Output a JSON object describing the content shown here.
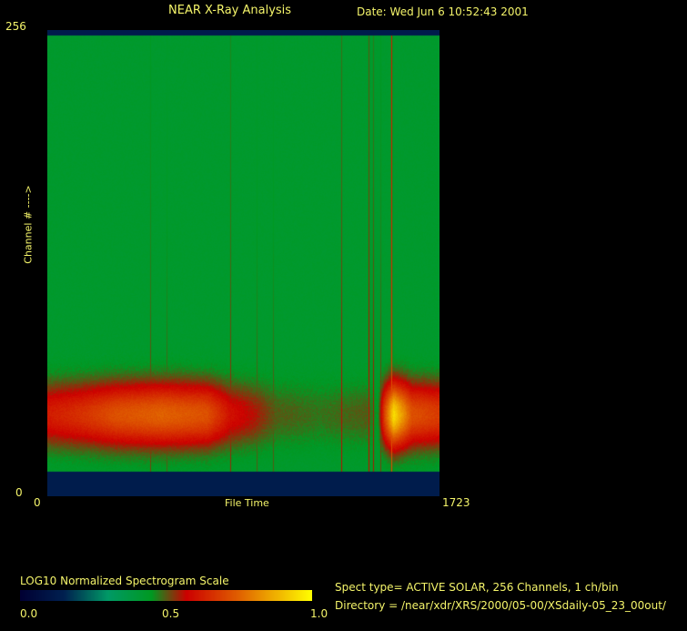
{
  "header": {
    "title": "NEAR X-Ray Analysis",
    "date": "Date: Wed Jun  6 10:52:43 2001"
  },
  "info": {
    "spect_type": "Spect type= ACTIVE SOLAR,  256 Channels,        1 ch/bin",
    "directory": "Directory = /near/xdr/XRS/2000/05-00/XSdaily-05_23_00out/"
  },
  "chart_data": {
    "type": "heatmap",
    "title": "NEAR X-Ray Analysis",
    "xlabel": "File Time",
    "ylabel": "Channel # ---->",
    "xlim": [
      0,
      1723
    ],
    "ylim": [
      0,
      256
    ],
    "x_tick_labels": [
      "0",
      "1723"
    ],
    "y_tick_labels": [
      "0",
      "256"
    ],
    "grid": false,
    "valid_channel_range": [
      14,
      253
    ],
    "background_level": 0.42,
    "band": {
      "center_channel": 45,
      "half_width_channels": 22,
      "profile_time": [
        0,
        150,
        300,
        500,
        700,
        800,
        900,
        1000,
        1200,
        1400,
        1450,
        1480,
        1520,
        1600,
        1723
      ],
      "profile_level": [
        0.62,
        0.66,
        0.72,
        0.75,
        0.72,
        0.6,
        0.56,
        0.5,
        0.48,
        0.5,
        0.44,
        0.7,
        0.95,
        0.72,
        0.68
      ]
    },
    "spikes": [
      {
        "time": 452,
        "level": 0.52
      },
      {
        "time": 524,
        "level": 0.5
      },
      {
        "time": 803,
        "level": 0.54
      },
      {
        "time": 919,
        "level": 0.5
      },
      {
        "time": 991,
        "level": 0.5
      },
      {
        "time": 1291,
        "level": 0.56
      },
      {
        "time": 1411,
        "level": 0.58
      },
      {
        "time": 1431,
        "level": 0.55
      },
      {
        "time": 1463,
        "level": 0.52
      },
      {
        "time": 1511,
        "level": 0.72
      }
    ],
    "colorbar": {
      "label": "LOG10 Normalized Spectrogram Scale",
      "ticks": [
        "0.0",
        "0.5",
        "1.0"
      ],
      "stops": [
        {
          "v": 0.0,
          "color": "#000033"
        },
        {
          "v": 0.15,
          "color": "#002050"
        },
        {
          "v": 0.3,
          "color": "#009966"
        },
        {
          "v": 0.45,
          "color": "#009922"
        },
        {
          "v": 0.57,
          "color": "#cc0000"
        },
        {
          "v": 0.75,
          "color": "#e06000"
        },
        {
          "v": 1.0,
          "color": "#ffff00"
        }
      ]
    }
  }
}
